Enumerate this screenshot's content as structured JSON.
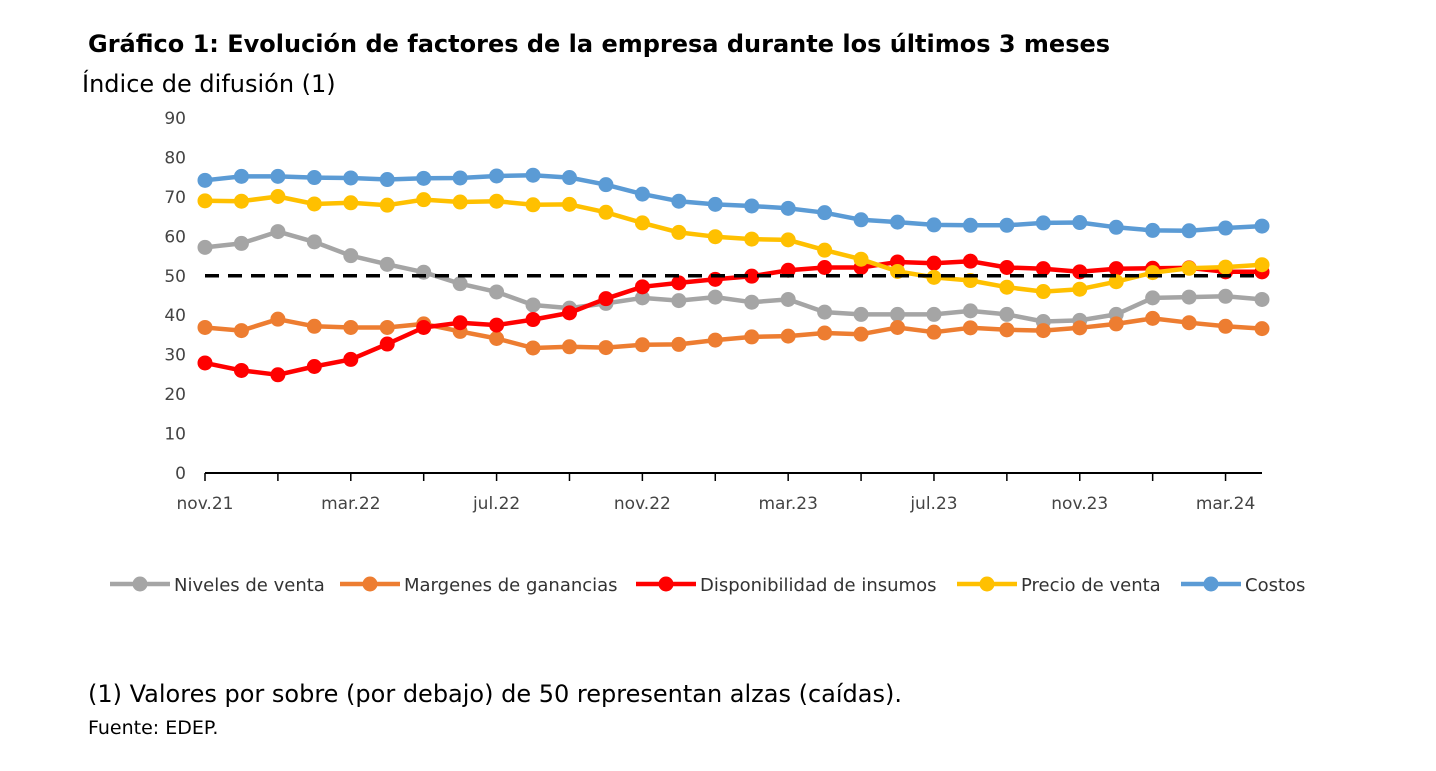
{
  "chart_data": {
    "type": "line",
    "title": "Gráfico 1: Evolución de factores de la empresa durante los últimos 3 meses",
    "subtitle": "Índice de difusión (1)",
    "ylim": [
      0,
      90
    ],
    "yticks": [
      0,
      10,
      20,
      30,
      40,
      50,
      60,
      70,
      80,
      90
    ],
    "x": [
      "nov.21",
      "dic.21",
      "ene.22",
      "feb.22",
      "mar.22",
      "abr.22",
      "may.22",
      "jun.22",
      "jul.22",
      "ago.22",
      "sep.22",
      "oct.22",
      "nov.22",
      "dic.22",
      "ene.23",
      "feb.23",
      "mar.23",
      "abr.23",
      "may.23",
      "jun.23",
      "jul.23",
      "ago.23",
      "sep.23",
      "oct.23",
      "nov.23",
      "dic.23",
      "ene.24",
      "feb.24",
      "mar.24",
      "abr.24"
    ],
    "xtick_labels": [
      "nov.21",
      "mar.22",
      "jul.22",
      "nov.22",
      "mar.23",
      "jul.23",
      "nov.23",
      "mar.24"
    ],
    "reference_line": 50,
    "grid": false,
    "legend_position": "bottom",
    "series": [
      {
        "name": "Niveles de venta",
        "color": "#A5A5A5",
        "values": [
          57.2,
          58.2,
          61.2,
          58.6,
          55.1,
          52.9,
          50.9,
          48.0,
          45.9,
          42.6,
          41.8,
          43.0,
          44.4,
          43.7,
          44.6,
          43.3,
          44.0,
          40.8,
          40.2,
          40.2,
          40.2,
          41.1,
          40.2,
          38.4,
          38.7,
          40.2,
          44.4,
          44.6,
          44.8,
          44.0
        ]
      },
      {
        "name": "Margenes de ganancias",
        "color": "#ED7D31",
        "values": [
          36.9,
          36.1,
          39.0,
          37.2,
          36.9,
          36.9,
          37.8,
          35.9,
          34.1,
          31.7,
          32.0,
          31.8,
          32.5,
          32.6,
          33.7,
          34.5,
          34.7,
          35.5,
          35.2,
          36.9,
          35.7,
          36.8,
          36.3,
          36.1,
          36.8,
          37.8,
          39.2,
          38.1,
          37.2,
          36.6
        ]
      },
      {
        "name": "Disponibilidad de insumos",
        "color": "#FF0000",
        "values": [
          27.9,
          26.0,
          24.9,
          27.0,
          28.8,
          32.7,
          36.9,
          38.1,
          37.5,
          38.9,
          40.6,
          44.2,
          47.2,
          48.2,
          49.1,
          49.9,
          51.4,
          52.1,
          52.1,
          53.5,
          53.2,
          53.7,
          52.1,
          51.8,
          51.0,
          51.8,
          51.9,
          52.0,
          51.0,
          51.0
        ]
      },
      {
        "name": "Precio de venta",
        "color": "#FFC000",
        "values": [
          69.0,
          68.9,
          70.1,
          68.2,
          68.5,
          67.9,
          69.3,
          68.7,
          68.9,
          68.0,
          68.1,
          66.1,
          63.4,
          61.0,
          59.9,
          59.3,
          59.1,
          56.5,
          54.2,
          51.1,
          49.6,
          48.8,
          47.1,
          46.0,
          46.6,
          48.5,
          50.8,
          51.9,
          52.2,
          52.8
        ]
      },
      {
        "name": "Costos",
        "color": "#5B9BD5",
        "values": [
          74.2,
          75.2,
          75.2,
          74.9,
          74.8,
          74.4,
          74.7,
          74.8,
          75.3,
          75.5,
          74.9,
          73.1,
          70.7,
          68.9,
          68.1,
          67.7,
          67.1,
          66.0,
          64.2,
          63.6,
          62.9,
          62.8,
          62.8,
          63.4,
          63.5,
          62.3,
          61.5,
          61.4,
          62.1,
          62.6
        ]
      }
    ]
  },
  "footer": {
    "note": "(1) Valores por sobre (por debajo) de 50 representan alzas (caídas).",
    "source": "Fuente: EDEP."
  }
}
